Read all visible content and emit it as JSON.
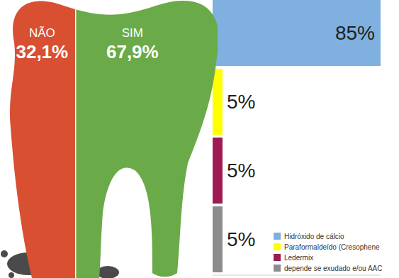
{
  "chart_data": [
    {
      "type": "split",
      "categories": [
        "NÃO",
        "SIM"
      ],
      "values": [
        32.1,
        67.9
      ],
      "value_labels": [
        "32,1%",
        "67,9%"
      ],
      "colors": [
        "#d84f32",
        "#6aaa48"
      ],
      "data_labels": true
    },
    {
      "type": "bar",
      "orientation": "horizontal",
      "categories": [
        "Hidróxido de cálcio",
        "Paraformaldeído (Cresophene",
        "Ledermix",
        "depende se exudado e/ou AAC"
      ],
      "values": [
        85,
        5,
        5,
        5
      ],
      "value_labels": [
        "85%",
        "5%",
        "5%",
        "5%"
      ],
      "colors": [
        "#7fb0e0",
        "#ffff00",
        "#9e1a52",
        "#8c8c8c"
      ],
      "xlim": [
        0,
        85
      ],
      "data_labels": true,
      "tick_labels": false,
      "legend": "lower right"
    }
  ]
}
